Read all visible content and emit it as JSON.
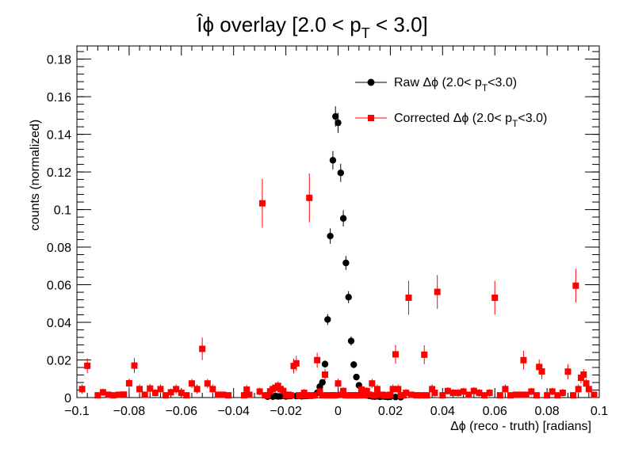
{
  "chart_data": {
    "type": "scatter",
    "title": "Îϕ overlay [2.0 < p",
    "title_sub": "T",
    "title_tail": " < 3.0]",
    "xlabel": "Δϕ (reco - truth) [radians]",
    "ylabel": "counts (normalized)",
    "xlim": [
      -0.1,
      0.1
    ],
    "ylim": [
      0,
      0.187
    ],
    "x_ticks": [
      -0.1,
      -0.08,
      -0.06,
      -0.04,
      -0.02,
      0,
      0.02,
      0.04,
      0.06,
      0.08,
      0.1
    ],
    "x_tick_labels": [
      "−0.1",
      "−0.08",
      "−0.06",
      "−0.04",
      "−0.02",
      "0",
      "0.02",
      "0.04",
      "0.06",
      "0.08",
      "0.1"
    ],
    "y_ticks": [
      0,
      0.02,
      0.04,
      0.06,
      0.08,
      0.1,
      0.12,
      0.14,
      0.16,
      0.18
    ],
    "y_tick_labels": [
      "0",
      "0.02",
      "0.04",
      "0.06",
      "0.08",
      "0.1",
      "0.12",
      "0.14",
      "0.16",
      "0.18"
    ],
    "legend_position": "top-right",
    "series": [
      {
        "name_main": "Raw  Δϕ (2.0< p",
        "name_sub": "T",
        "name_tail": "<3.0)",
        "marker": "circle",
        "color": "#000000",
        "x": [
          -0.027,
          -0.025,
          -0.024,
          -0.023,
          -0.022,
          -0.021,
          -0.02,
          -0.019,
          -0.018,
          -0.016,
          -0.015,
          -0.014,
          -0.013,
          -0.012,
          -0.011,
          -0.01,
          -0.009,
          -0.008,
          -0.007,
          -0.006,
          -0.005,
          -0.004,
          -0.003,
          -0.002,
          -0.001,
          0.0,
          0.001,
          0.002,
          0.003,
          0.004,
          0.005,
          0.006,
          0.007,
          0.008,
          0.009,
          0.01,
          0.011,
          0.012,
          0.013,
          0.014,
          0.015,
          0.016,
          0.017,
          0.018,
          0.019,
          0.02,
          0.022,
          0.024
        ],
        "y": [
          0.0005,
          0.0005,
          0.0008,
          0.0006,
          0.0007,
          0.001,
          0.0006,
          0.0008,
          0.0009,
          0.0008,
          0.001,
          0.0007,
          0.0008,
          0.0009,
          0.001,
          0.001,
          0.0012,
          0.0025,
          0.0058,
          0.0081,
          0.0178,
          0.0415,
          0.0859,
          0.1262,
          0.1495,
          0.1461,
          0.1195,
          0.0953,
          0.0716,
          0.0534,
          0.0301,
          0.0175,
          0.0109,
          0.0065,
          0.0034,
          0.0021,
          0.0012,
          0.0009,
          0.0006,
          0.0005,
          0.0007,
          0.0004,
          0.0006,
          0.0005,
          0.0003,
          0.0004,
          0.0003,
          0.0002
        ],
        "err": [
          0.0003,
          0.0003,
          0.0004,
          0.0003,
          0.0003,
          0.0004,
          0.0003,
          0.0004,
          0.0004,
          0.0004,
          0.0004,
          0.0003,
          0.0004,
          0.0004,
          0.0004,
          0.0004,
          0.0005,
          0.0007,
          0.0011,
          0.0013,
          0.0019,
          0.0029,
          0.0041,
          0.0049,
          0.0054,
          0.0053,
          0.0048,
          0.0043,
          0.0037,
          0.0032,
          0.0024,
          0.0019,
          0.0015,
          0.0011,
          0.0008,
          0.0006,
          0.0005,
          0.0004,
          0.0003,
          0.0003,
          0.0003,
          0.0002,
          0.0003,
          0.0003,
          0.0002,
          0.0002,
          0.0002,
          0.0002
        ]
      },
      {
        "name_main": "Corrected  Δϕ (2.0< p",
        "name_sub": "T",
        "name_tail": "<3.0)",
        "marker": "square",
        "color": "#ff0000",
        "x": [
          -0.098,
          -0.096,
          -0.092,
          -0.09,
          -0.088,
          -0.086,
          -0.084,
          -0.082,
          -0.08,
          -0.078,
          -0.076,
          -0.074,
          -0.072,
          -0.07,
          -0.068,
          -0.066,
          -0.064,
          -0.062,
          -0.06,
          -0.058,
          -0.056,
          -0.054,
          -0.052,
          -0.05,
          -0.048,
          -0.046,
          -0.044,
          -0.042,
          -0.036,
          -0.035,
          -0.034,
          -0.03,
          -0.029,
          -0.028,
          -0.027,
          -0.026,
          -0.025,
          -0.024,
          -0.023,
          -0.022,
          -0.021,
          -0.02,
          -0.019,
          -0.018,
          -0.017,
          -0.016,
          -0.015,
          -0.014,
          -0.013,
          -0.012,
          -0.011,
          -0.01,
          -0.009,
          -0.008,
          -0.007,
          -0.006,
          -0.005,
          -0.004,
          -0.003,
          -0.002,
          -0.001,
          0.0,
          0.001,
          0.002,
          0.003,
          0.004,
          0.005,
          0.006,
          0.007,
          0.008,
          0.009,
          0.01,
          0.011,
          0.012,
          0.013,
          0.014,
          0.015,
          0.016,
          0.017,
          0.018,
          0.019,
          0.02,
          0.021,
          0.022,
          0.023,
          0.024,
          0.025,
          0.026,
          0.027,
          0.028,
          0.03,
          0.032,
          0.033,
          0.034,
          0.036,
          0.037,
          0.038,
          0.04,
          0.042,
          0.044,
          0.046,
          0.048,
          0.05,
          0.052,
          0.054,
          0.056,
          0.058,
          0.06,
          0.062,
          0.064,
          0.066,
          0.068,
          0.07,
          0.071,
          0.072,
          0.074,
          0.076,
          0.077,
          0.078,
          0.08,
          0.082,
          0.084,
          0.086,
          0.088,
          0.09,
          0.091,
          0.092,
          0.093,
          0.094,
          0.095,
          0.096,
          0.098
        ],
        "y": [
          0.0045,
          0.0169,
          0.0012,
          0.0028,
          0.0015,
          0.0012,
          0.0015,
          0.0016,
          0.0076,
          0.017,
          0.0045,
          0.0015,
          0.0048,
          0.0025,
          0.0045,
          0.0012,
          0.0028,
          0.0045,
          0.0025,
          0.0012,
          0.0075,
          0.0045,
          0.0259,
          0.0075,
          0.0045,
          0.0015,
          0.0015,
          0.0012,
          0.0012,
          0.0042,
          0.0015,
          0.0032,
          0.1033,
          0.0012,
          0.0012,
          0.0033,
          0.0045,
          0.0052,
          0.0062,
          0.0045,
          0.0035,
          0.0012,
          0.0015,
          0.0012,
          0.0168,
          0.0182,
          0.0012,
          0.0012,
          0.0025,
          0.0012,
          0.1062,
          0.0012,
          0.0012,
          0.0199,
          0.0032,
          0.0012,
          0.0122,
          0.0012,
          0.0012,
          0.0012,
          0.0012,
          0.0075,
          0.0015,
          0.0035,
          0.0012,
          0.0012,
          0.0012,
          0.0012,
          0.0012,
          0.0012,
          0.0042,
          0.0012,
          0.0035,
          0.0015,
          0.0075,
          0.0012,
          0.0045,
          0.0015,
          0.0015,
          0.0012,
          0.0012,
          0.0015,
          0.0045,
          0.023,
          0.0045,
          0.0012,
          0.0012,
          0.0025,
          0.0531,
          0.0015,
          0.0012,
          0.0012,
          0.0228,
          0.0012,
          0.0045,
          0.0025,
          0.0562,
          0.0012,
          0.0035,
          0.0025,
          0.0025,
          0.0032,
          0.0015,
          0.0035,
          0.0025,
          0.0012,
          0.0025,
          0.0531,
          0.0012,
          0.0045,
          0.0012,
          0.0015,
          0.0015,
          0.0199,
          0.0015,
          0.0032,
          0.0012,
          0.0163,
          0.0139,
          0.0012,
          0.0032,
          0.0012,
          0.0025,
          0.0138,
          0.0012,
          0.0595,
          0.0045,
          0.0105,
          0.0122,
          0.0075,
          0.0045,
          0.0015
        ],
        "err": [
          0.0025,
          0.004,
          0.0015,
          0.002,
          0.0015,
          0.0015,
          0.0015,
          0.0015,
          0.0025,
          0.004,
          0.0025,
          0.0015,
          0.0025,
          0.002,
          0.0025,
          0.0015,
          0.002,
          0.0025,
          0.002,
          0.0015,
          0.0025,
          0.0025,
          0.006,
          0.0025,
          0.0025,
          0.0015,
          0.0015,
          0.0015,
          0.0015,
          0.0025,
          0.0015,
          0.002,
          0.013,
          0.0015,
          0.0015,
          0.002,
          0.0025,
          0.0025,
          0.0025,
          0.0025,
          0.002,
          0.0015,
          0.0015,
          0.0015,
          0.004,
          0.004,
          0.0015,
          0.0015,
          0.002,
          0.0015,
          0.013,
          0.0015,
          0.0015,
          0.004,
          0.002,
          0.0015,
          0.003,
          0.0015,
          0.0015,
          0.0015,
          0.0015,
          0.0025,
          0.0015,
          0.002,
          0.0015,
          0.0015,
          0.0015,
          0.0015,
          0.0015,
          0.0015,
          0.0025,
          0.0015,
          0.002,
          0.0015,
          0.0025,
          0.0015,
          0.0025,
          0.0015,
          0.0015,
          0.0015,
          0.0015,
          0.0015,
          0.0025,
          0.005,
          0.0025,
          0.0015,
          0.0015,
          0.002,
          0.009,
          0.0015,
          0.0015,
          0.0015,
          0.005,
          0.0015,
          0.0025,
          0.002,
          0.009,
          0.0015,
          0.002,
          0.002,
          0.002,
          0.002,
          0.0015,
          0.002,
          0.002,
          0.0015,
          0.002,
          0.009,
          0.0015,
          0.0025,
          0.0015,
          0.0015,
          0.0015,
          0.005,
          0.0015,
          0.002,
          0.0015,
          0.004,
          0.004,
          0.0015,
          0.002,
          0.0015,
          0.002,
          0.004,
          0.0015,
          0.009,
          0.0025,
          0.003,
          0.003,
          0.0025,
          0.0025,
          0.0015
        ]
      }
    ]
  }
}
